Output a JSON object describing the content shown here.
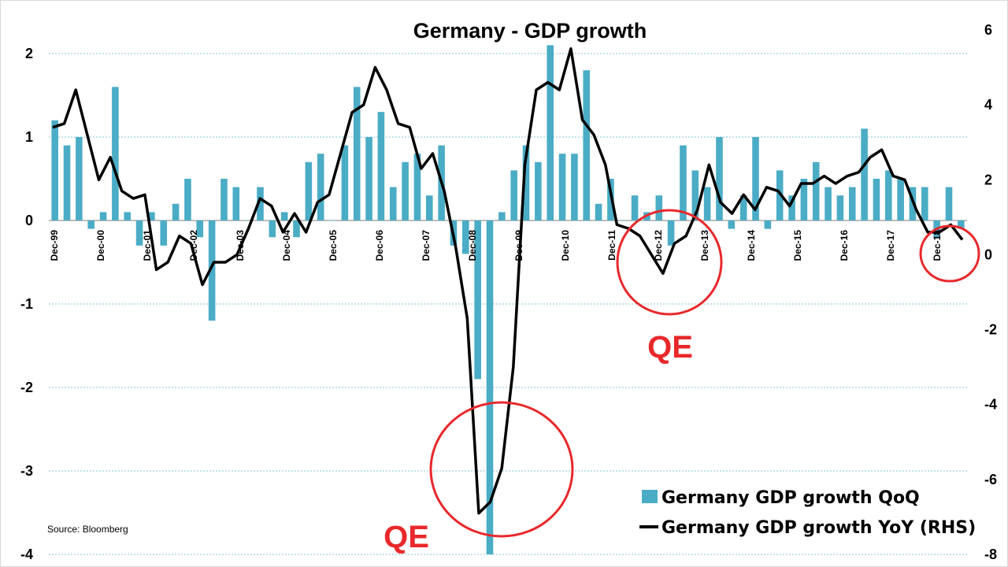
{
  "chart_data": {
    "type": "bar",
    "title": "Germany - GDP growth",
    "source": "Source:  Bloomberg",
    "colors": {
      "bars": "#4bacc6",
      "line": "#000000",
      "annotation": "#e8282b"
    },
    "y_left": {
      "range": [
        -4,
        2
      ],
      "ticks": [
        "2",
        "1",
        "0",
        "-1",
        "-2",
        "-3",
        "-4"
      ]
    },
    "y_right": {
      "range": [
        -8,
        6
      ],
      "ticks": [
        "6",
        "4",
        "2",
        "0",
        "-2",
        "-4",
        "-6",
        "-8"
      ]
    },
    "x_tick_labels": [
      "Dec-99",
      "Dec-00",
      "Dec-01",
      "Dec-02",
      "Dec-03",
      "Dec-04",
      "Dec-05",
      "Dec-06",
      "Dec-07",
      "Dec-08",
      "Dec-09",
      "Dec-10",
      "Dec-11",
      "Dec-12",
      "Dec-13",
      "Dec-14",
      "Dec-15",
      "Dec-16",
      "Dec-17",
      "Dec-18"
    ],
    "grid": true,
    "legend_position": "bottom-right",
    "series": [
      {
        "name": "Germany GDP growth QoQ",
        "type": "bar",
        "axis": "left",
        "values": [
          1.2,
          0.9,
          1.0,
          -0.1,
          0.1,
          1.6,
          0.1,
          -0.3,
          0.1,
          -0.3,
          0.2,
          0.5,
          -0.2,
          -1.2,
          0.5,
          0.4,
          0.0,
          0.4,
          -0.2,
          0.1,
          -0.2,
          0.7,
          0.8,
          0.0,
          0.9,
          1.6,
          1.0,
          1.3,
          0.4,
          0.7,
          0.8,
          0.3,
          0.9,
          -0.3,
          -0.4,
          -1.9,
          -4.0,
          0.1,
          0.6,
          0.9,
          0.7,
          2.1,
          0.8,
          0.8,
          1.8,
          0.2,
          0.5,
          0.0,
          0.3,
          0.1,
          0.3,
          -0.3,
          0.9,
          0.6,
          0.4,
          1.0,
          -0.1,
          0.3,
          1.0,
          -0.1,
          0.6,
          0.3,
          0.5,
          0.7,
          0.4,
          0.3,
          0.4,
          1.1,
          0.5,
          0.6,
          0.5,
          0.4,
          0.4,
          -0.2,
          0.4,
          -0.1
        ]
      },
      {
        "name": "Germany GDP growth YoY (RHS)",
        "type": "line",
        "axis": "right",
        "values": [
          3.4,
          3.5,
          4.4,
          3.2,
          2.0,
          2.6,
          1.7,
          1.5,
          1.6,
          -0.4,
          -0.2,
          0.5,
          0.3,
          -0.8,
          -0.2,
          -0.2,
          0.0,
          0.7,
          1.5,
          1.3,
          0.6,
          1.1,
          0.6,
          1.4,
          1.6,
          2.7,
          3.8,
          4.0,
          5.0,
          4.4,
          3.5,
          3.4,
          2.3,
          2.7,
          1.7,
          0.2,
          -1.7,
          -6.9,
          -6.6,
          -5.7,
          -3.0,
          2.4,
          4.4,
          4.6,
          4.4,
          5.5,
          3.6,
          3.2,
          2.4,
          0.8,
          0.7,
          0.5,
          0.0,
          -0.5,
          0.3,
          0.5,
          1.2,
          2.4,
          1.4,
          1.1,
          1.6,
          1.2,
          1.8,
          1.7,
          1.3,
          1.9,
          1.9,
          2.1,
          1.9,
          2.1,
          2.2,
          2.6,
          2.8,
          2.1,
          2.0,
          1.2,
          0.6,
          0.6,
          0.8,
          0.4
        ]
      }
    ],
    "annotations": [
      "QE",
      "QE"
    ]
  }
}
